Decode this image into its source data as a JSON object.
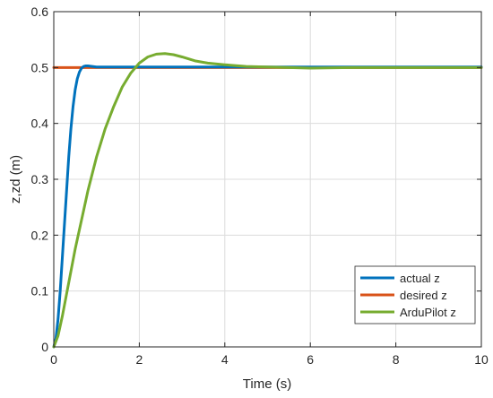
{
  "chart_data": {
    "type": "line",
    "title": "",
    "xlabel": "Time (s)",
    "ylabel": "z,zd (m)",
    "xlim": [
      0,
      10
    ],
    "ylim": [
      0,
      0.6
    ],
    "xticks": [
      0,
      2,
      4,
      6,
      8,
      10
    ],
    "yticks": [
      0,
      0.1,
      0.2,
      0.3,
      0.4,
      0.5,
      0.6
    ],
    "xtick_labels": [
      "0",
      "2",
      "4",
      "6",
      "8",
      "10"
    ],
    "ytick_labels": [
      "0",
      "0.1",
      "0.2",
      "0.3",
      "0.4",
      "0.5",
      "0.6"
    ],
    "grid": true,
    "legend": "bottom-right",
    "series": [
      {
        "name": "actual z",
        "color": "#0072BD",
        "x": [
          0,
          0.05,
          0.1,
          0.15,
          0.2,
          0.25,
          0.3,
          0.35,
          0.4,
          0.45,
          0.5,
          0.55,
          0.6,
          0.65,
          0.7,
          0.75,
          0.8,
          0.9,
          1.0,
          10
        ],
        "y": [
          0,
          0.015,
          0.05,
          0.1,
          0.16,
          0.22,
          0.28,
          0.34,
          0.39,
          0.43,
          0.46,
          0.48,
          0.492,
          0.499,
          0.502,
          0.503,
          0.503,
          0.502,
          0.501,
          0.501
        ]
      },
      {
        "name": "desired z",
        "color": "#D95319",
        "x": [
          0,
          10
        ],
        "y": [
          0.5,
          0.5
        ]
      },
      {
        "name": "ArduPilot z",
        "color": "#77AC30",
        "x": [
          0,
          0.1,
          0.2,
          0.3,
          0.4,
          0.5,
          0.6,
          0.7,
          0.8,
          0.9,
          1.0,
          1.2,
          1.4,
          1.6,
          1.8,
          2.0,
          2.2,
          2.4,
          2.6,
          2.8,
          3.0,
          3.3,
          3.6,
          4.0,
          4.5,
          5.0,
          5.5,
          6.0,
          7.0,
          8.0,
          9.0,
          10.0
        ],
        "y": [
          0,
          0.02,
          0.055,
          0.095,
          0.135,
          0.175,
          0.21,
          0.245,
          0.28,
          0.31,
          0.34,
          0.39,
          0.43,
          0.465,
          0.49,
          0.508,
          0.519,
          0.524,
          0.525,
          0.523,
          0.519,
          0.512,
          0.508,
          0.505,
          0.502,
          0.501,
          0.5,
          0.499,
          0.5,
          0.5,
          0.5,
          0.5
        ]
      }
    ]
  }
}
